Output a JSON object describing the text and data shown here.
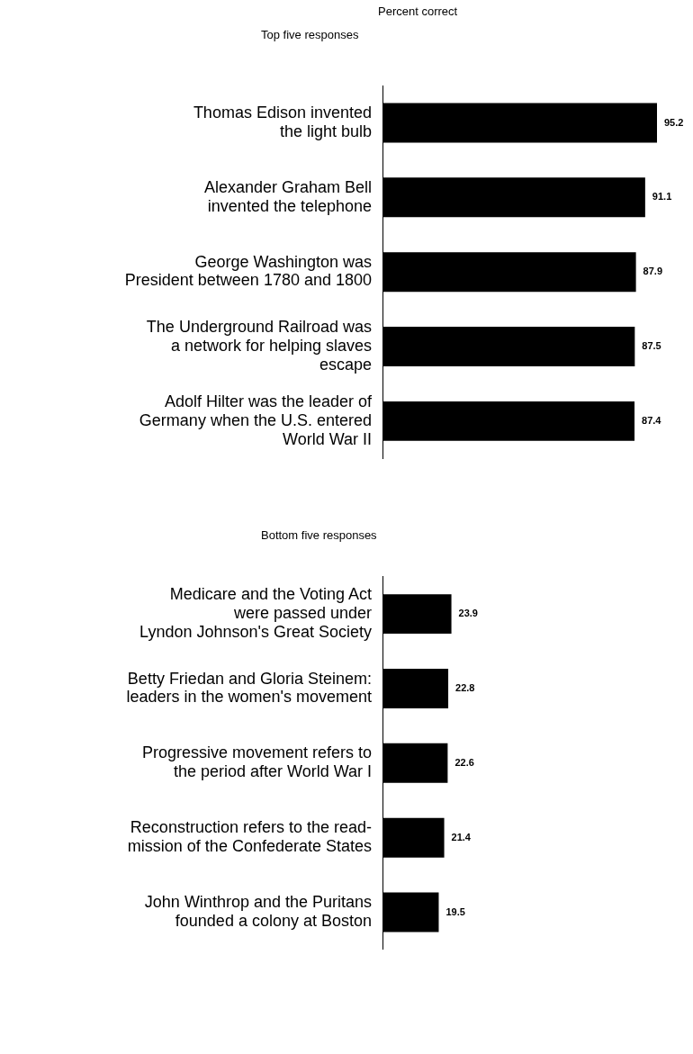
{
  "chart_data": [
    {
      "type": "bar",
      "orientation": "horizontal",
      "title": "Top five responses",
      "xlabel": "Percent correct",
      "categories": [
        "Thomas Edison invented\nthe light bulb",
        "Alexander Graham Bell\ninvented the telephone",
        "George Washington was\nPresident between 1780 and 1800",
        "The Underground Railroad was\na network for helping slaves\nescape",
        "Adolf Hilter was the leader of\nGermany when the U.S. entered\nWorld War II"
      ],
      "values": [
        95.2,
        91.1,
        87.9,
        87.5,
        87.4
      ],
      "color": "#000000",
      "data_labels": true,
      "tick_labels": "y",
      "grid": false,
      "legend": false
    },
    {
      "type": "bar",
      "orientation": "horizontal",
      "title": "Bottom five responses",
      "categories": [
        "Medicare and the Voting Act\nwere passed under\nLyndon Johnson's Great Society",
        "Betty Friedan and Gloria Steinem:\nleaders in the women's movement",
        "Progressive movement refers to\nthe period after World War I",
        "Reconstruction refers to the read-\nmission of the Confederate States",
        "John Winthrop and the Puritans\nfounded a colony at Boston"
      ],
      "values": [
        23.9,
        22.8,
        22.6,
        21.4,
        19.5
      ],
      "color": "#000000",
      "data_labels": true,
      "tick_labels": "y",
      "grid": false,
      "legend": false
    }
  ]
}
